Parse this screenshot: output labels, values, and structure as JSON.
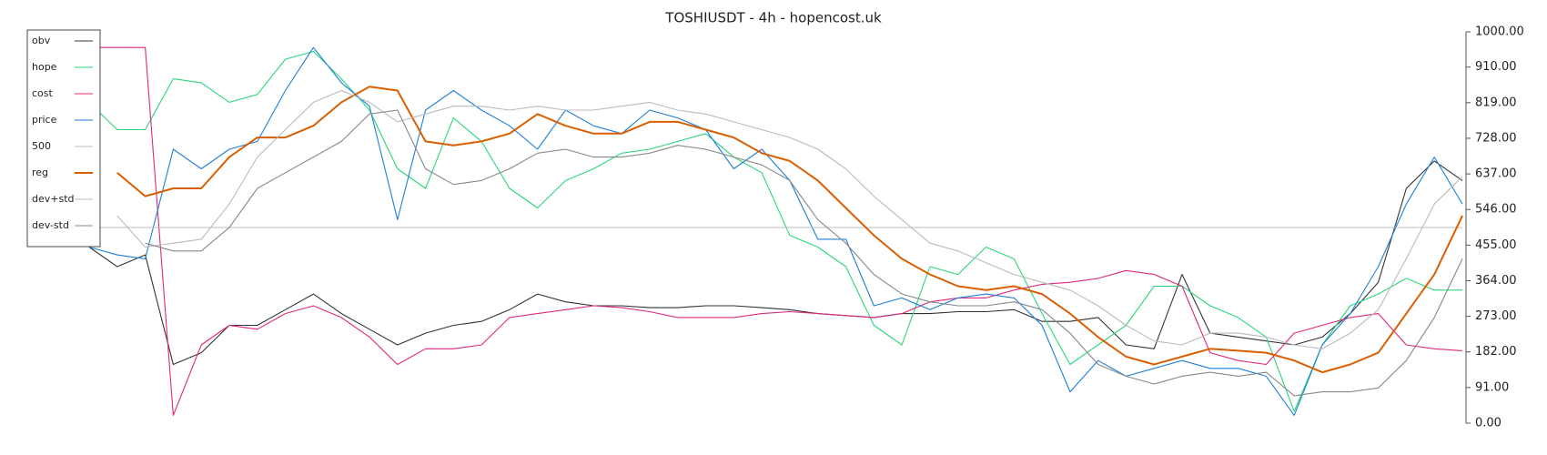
{
  "chart_data": {
    "type": "line",
    "title": "TOSHIUSDT - 4h - hopencost.uk",
    "ylim": [
      0,
      1000
    ],
    "y_axis_side": "right",
    "yticks": [
      {
        "value": 0,
        "label": "0.00"
      },
      {
        "value": 91,
        "label": "91.00"
      },
      {
        "value": 182,
        "label": "182.00"
      },
      {
        "value": 273,
        "label": "273.00"
      },
      {
        "value": 364,
        "label": "364.00"
      },
      {
        "value": 455,
        "label": "455.00"
      },
      {
        "value": 546,
        "label": "546.00"
      },
      {
        "value": 637,
        "label": "637.00"
      },
      {
        "value": 728,
        "label": "728.00"
      },
      {
        "value": 819,
        "label": "819.00"
      },
      {
        "value": 910,
        "label": "910.00"
      },
      {
        "value": 1000,
        "label": "1000.00"
      }
    ],
    "legend": "upper left",
    "series": [
      {
        "name": "obv",
        "color": "#333333",
        "width": 1.1,
        "values": [
          450,
          400,
          430,
          150,
          180,
          250,
          250,
          290,
          330,
          280,
          240,
          200,
          230,
          250,
          260,
          290,
          330,
          310,
          300,
          300,
          295,
          295,
          300,
          300,
          295,
          290,
          280,
          275,
          270,
          280,
          280,
          285,
          285,
          290,
          260,
          260,
          270,
          200,
          190,
          380,
          230,
          220,
          210,
          200,
          220,
          280,
          360,
          600,
          670,
          620
        ]
      },
      {
        "name": "hope",
        "color": "#2bd67b",
        "width": 1.1,
        "values": [
          820,
          750,
          750,
          880,
          870,
          820,
          840,
          930,
          950,
          880,
          800,
          650,
          600,
          780,
          720,
          600,
          550,
          620,
          650,
          690,
          700,
          720,
          740,
          680,
          640,
          480,
          450,
          400,
          250,
          200,
          400,
          380,
          450,
          420,
          280,
          150,
          200,
          250,
          350,
          350,
          300,
          270,
          220,
          30,
          200,
          300,
          330,
          370,
          340,
          340
        ]
      },
      {
        "name": "cost",
        "color": "#e0287a",
        "width": 1.1,
        "values": [
          960,
          960,
          960,
          20,
          200,
          250,
          240,
          280,
          300,
          270,
          220,
          150,
          190,
          190,
          200,
          270,
          280,
          290,
          300,
          295,
          285,
          270,
          270,
          270,
          280,
          285,
          280,
          275,
          270,
          280,
          310,
          320,
          320,
          340,
          355,
          360,
          370,
          390,
          380,
          350,
          180,
          160,
          150,
          230,
          250,
          270,
          280,
          200,
          190,
          185
        ]
      },
      {
        "name": "price",
        "color": "#1e7fd8",
        "width": 1.1,
        "values": [
          450,
          430,
          420,
          700,
          650,
          700,
          720,
          850,
          960,
          870,
          810,
          520,
          800,
          850,
          800,
          760,
          700,
          800,
          760,
          740,
          800,
          780,
          750,
          650,
          700,
          620,
          470,
          470,
          300,
          320,
          290,
          320,
          330,
          320,
          250,
          80,
          160,
          120,
          140,
          160,
          140,
          140,
          120,
          20,
          200,
          280,
          400,
          560,
          680,
          560
        ]
      },
      {
        "name": "500",
        "color": "#bbbbbb",
        "width": 1.1,
        "values": [
          500,
          500,
          500,
          500,
          500,
          500,
          500,
          500,
          500,
          500,
          500,
          500,
          500,
          500,
          500,
          500,
          500,
          500,
          500,
          500,
          500,
          500,
          500,
          500,
          500,
          500,
          500,
          500,
          500,
          500,
          500,
          500,
          500,
          500,
          500,
          500,
          500,
          500,
          500,
          500,
          500,
          500,
          500,
          500,
          500,
          500,
          500,
          500,
          500,
          500
        ]
      },
      {
        "name": "reg",
        "color": "#d95f02",
        "width": 2,
        "values": [
          null,
          640,
          580,
          600,
          600,
          680,
          730,
          730,
          760,
          820,
          860,
          850,
          720,
          710,
          720,
          740,
          790,
          760,
          740,
          740,
          770,
          770,
          750,
          730,
          690,
          670,
          620,
          550,
          480,
          420,
          380,
          350,
          340,
          350,
          330,
          280,
          220,
          170,
          150,
          170,
          190,
          185,
          180,
          160,
          130,
          150,
          180,
          280,
          380,
          530
        ]
      },
      {
        "name": "dev+std",
        "color": "#bbbbbb",
        "width": 1.1,
        "values": [
          null,
          530,
          450,
          460,
          470,
          560,
          680,
          750,
          820,
          850,
          820,
          770,
          790,
          810,
          810,
          800,
          810,
          800,
          800,
          810,
          820,
          800,
          790,
          770,
          750,
          730,
          700,
          650,
          580,
          520,
          460,
          440,
          410,
          380,
          360,
          340,
          300,
          250,
          210,
          200,
          230,
          230,
          220,
          200,
          190,
          230,
          290,
          420,
          560,
          630
        ]
      },
      {
        "name": "dev-std",
        "color": "#888888",
        "width": 1.1,
        "values": [
          null,
          null,
          460,
          440,
          440,
          500,
          600,
          640,
          680,
          720,
          790,
          800,
          650,
          610,
          620,
          650,
          690,
          700,
          680,
          680,
          690,
          710,
          700,
          680,
          660,
          620,
          520,
          460,
          380,
          330,
          310,
          300,
          300,
          310,
          290,
          230,
          150,
          120,
          100,
          120,
          130,
          120,
          130,
          70,
          80,
          80,
          90,
          160,
          270,
          420
        ]
      }
    ]
  }
}
